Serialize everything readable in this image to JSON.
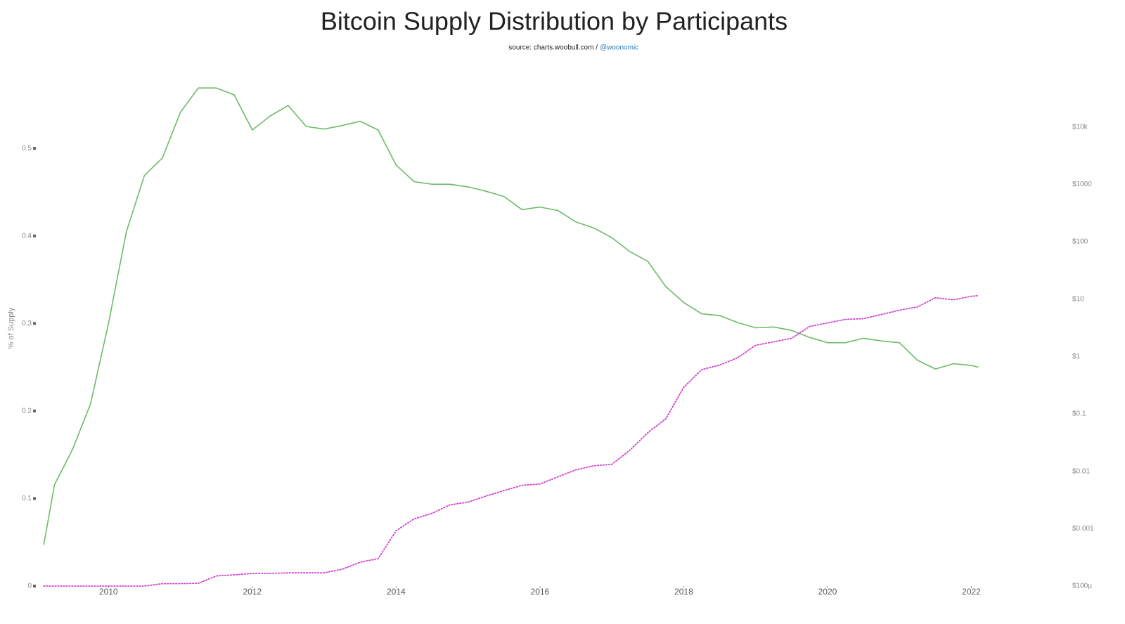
{
  "chart_data": {
    "type": "line",
    "title": "Bitcoin Supply Distribution by Participants",
    "subtitle": "source: charts.woobull.com /",
    "subtitle_link": "@woonomic",
    "ylabel": "% of Supply",
    "x": [
      2009.1,
      2009.25,
      2009.5,
      2009.75,
      2010,
      2010.25,
      2010.5,
      2010.75,
      2011,
      2011.25,
      2011.5,
      2011.75,
      2012,
      2012.25,
      2012.5,
      2012.75,
      2013,
      2013.25,
      2013.5,
      2013.75,
      2014,
      2014.25,
      2014.5,
      2014.75,
      2015,
      2015.25,
      2015.5,
      2015.75,
      2016,
      2016.25,
      2016.5,
      2016.75,
      2017,
      2017.25,
      2017.5,
      2017.75,
      2018,
      2018.25,
      2018.5,
      2018.75,
      2019,
      2019.25,
      2019.5,
      2019.75,
      2020,
      2020.25,
      2020.5,
      2020.75,
      2021,
      2021.25,
      2021.5,
      2021.75,
      2022,
      2022.1
    ],
    "series": [
      {
        "color": "#6dbb68",
        "values": [
          0.047,
          0.116,
          0.156,
          0.208,
          0.3,
          0.405,
          0.469,
          0.489,
          0.541,
          0.569,
          0.569,
          0.561,
          0.521,
          0.537,
          0.549,
          0.525,
          0.522,
          0.526,
          0.531,
          0.521,
          0.481,
          0.462,
          0.459,
          0.459,
          0.456,
          0.451,
          0.445,
          0.43,
          0.433,
          0.429,
          0.416,
          0.409,
          0.398,
          0.382,
          0.371,
          0.342,
          0.324,
          0.311,
          0.309,
          0.301,
          0.295,
          0.296,
          0.292,
          0.284,
          0.278,
          0.278,
          0.283,
          0.28,
          0.278,
          0.258,
          0.248,
          0.254,
          0.252,
          0.25
        ]
      },
      {
        "color": "#d23fd2",
        "axis": "y2",
        "dashed": true,
        "values": [
          0.0001,
          0.0001,
          0.0001,
          0.0001,
          0.0001,
          0.0001,
          0.0001,
          0.00011,
          0.00011,
          0.000112,
          0.00015,
          0.000157,
          0.000166,
          0.000166,
          0.00017,
          0.00017,
          0.00017,
          0.000196,
          0.00026,
          0.0003,
          0.00092,
          0.00148,
          0.00185,
          0.0026,
          0.0029,
          0.0037,
          0.0046,
          0.0057,
          0.006,
          0.008,
          0.0106,
          0.0125,
          0.0132,
          0.0232,
          0.047,
          0.082,
          0.29,
          0.59,
          0.71,
          0.95,
          1.57,
          1.8,
          2.07,
          3.34,
          3.85,
          4.43,
          4.56,
          5.4,
          6.4,
          7.3,
          10.6,
          9.7,
          11.2,
          11.5
        ]
      }
    ],
    "xlim": [
      2009,
      2023.1
    ],
    "xticks": [
      2010,
      2012,
      2014,
      2016,
      2018,
      2020,
      2022
    ],
    "ylim": [
      0,
      0.59
    ],
    "yticks": [
      0,
      0.1,
      0.2,
      0.3,
      0.4,
      0.5
    ],
    "y2lim": [
      0.0001,
      100000
    ],
    "y2log": true,
    "y2ticks": [
      {
        "value": 0.0001,
        "label": "$100µ"
      },
      {
        "value": 0.001,
        "label": "$0.001"
      },
      {
        "value": 0.01,
        "label": "$0.01"
      },
      {
        "value": 0.1,
        "label": "$0.1"
      },
      {
        "value": 1,
        "label": "$1"
      },
      {
        "value": 10,
        "label": "$10"
      },
      {
        "value": 100,
        "label": "$100"
      },
      {
        "value": 1000,
        "label": "$1000"
      },
      {
        "value": 10000,
        "label": "$10k"
      }
    ]
  }
}
